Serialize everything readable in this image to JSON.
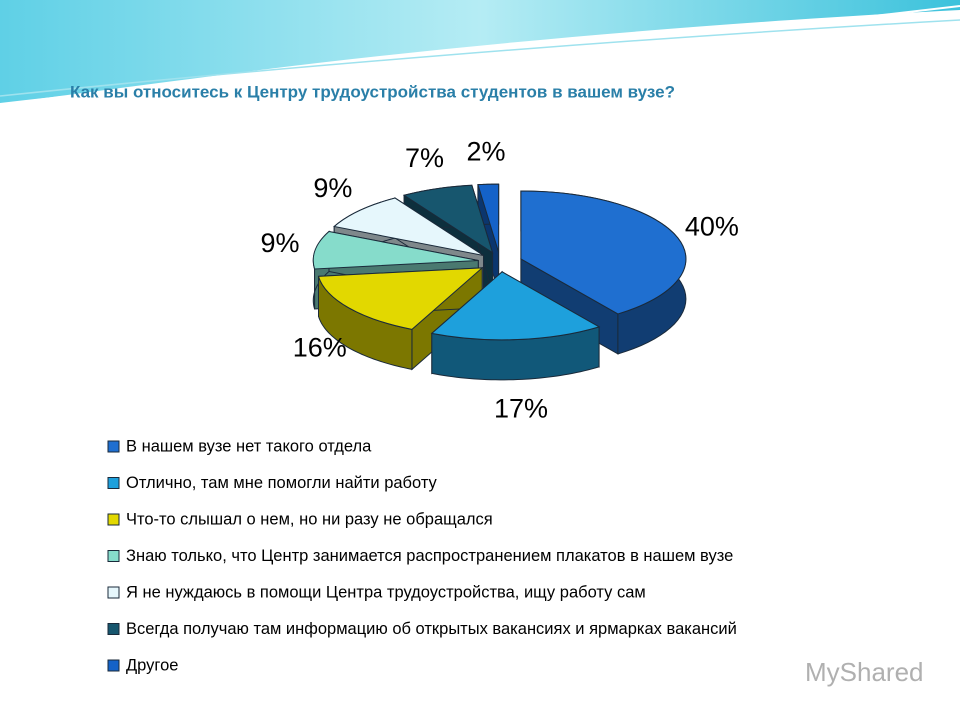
{
  "chart_data": {
    "type": "pie",
    "title": "Как вы относитесь к Центру трудоустройства студентов в вашем вузе?",
    "categories": [
      "В нашем вузе нет такого отдела",
      "Отлично, там мне помогли найти работу",
      "Что-то слышал о нем, но ни разу не обращался",
      "Знаю только, что Центр занимается распространением плакатов в нашем вузе",
      "Я не нуждаюсь в помощи Центра трудоустройства, ищу работу сам",
      "Всегда получаю там информацию об открытых вакансиях и ярмарках вакансий",
      "Другое"
    ],
    "values": [
      40,
      17,
      16,
      9,
      9,
      7,
      2
    ],
    "value_labels": [
      "40%",
      "17%",
      "16%",
      "9%",
      "9%",
      "7%",
      "2%"
    ],
    "colors": [
      "#1f6fd0",
      "#1ea0dc",
      "#e2d800",
      "#86dccb",
      "#e6f7fc",
      "#17566e",
      "#1462c8"
    ]
  },
  "watermark": "MyShared"
}
